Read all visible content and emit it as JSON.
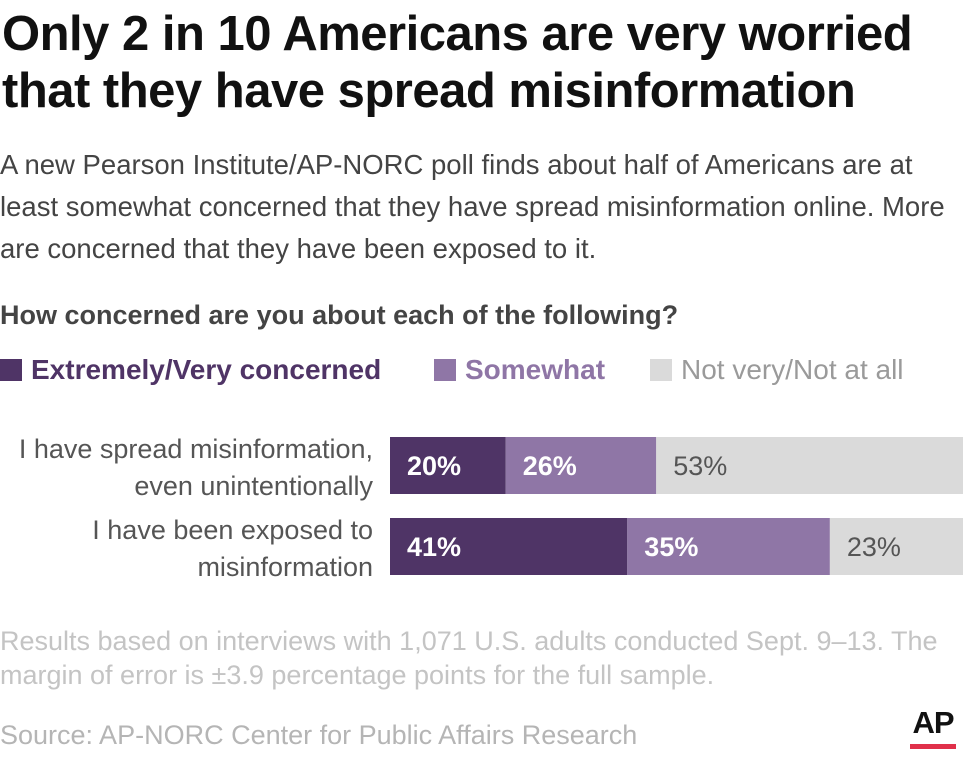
{
  "title": "Only 2 in 10 Americans are very worried that they have spread misinformation",
  "subtitle": "A new Pearson Institute/AP-NORC poll finds about half of Americans are at least somewhat concerned that they have spread misinformation online. More are concerned that they have been exposed to it.",
  "note": "Results based on interviews with 1,071 U.S. adults conducted Sept. 9–13. The margin of error is ±3.9 percentage points for the full sample.",
  "source": "Source: AP-NORC Center for Public Affairs Research",
  "logo": {
    "text": "AP",
    "bar_color": "#e0304a"
  },
  "chart_data": {
    "type": "bar",
    "orientation": "horizontal",
    "stacked": true,
    "title": "How concerned are you about each of the following?",
    "categories": [
      [
        "I have spread misinformation,",
        "even unintentionally"
      ],
      [
        "I have been exposed to",
        "misinformation"
      ]
    ],
    "series": [
      {
        "name": "Extremely/Very concerned",
        "values": [
          20,
          41
        ],
        "color": "#4f3466",
        "label_color": "#ffffff",
        "label_bold": true
      },
      {
        "name": "Somewhat",
        "values": [
          26,
          35
        ],
        "color": "#8f76a6",
        "label_color": "#ffffff",
        "label_bold": true
      },
      {
        "name": "Not very/Not at all",
        "values": [
          53,
          23
        ],
        "color": "#dadada",
        "label_color": "#555555",
        "label_bold": false
      }
    ],
    "value_suffix": "%",
    "xlim": [
      0,
      99
    ],
    "legend_position": "top",
    "grid": false
  }
}
